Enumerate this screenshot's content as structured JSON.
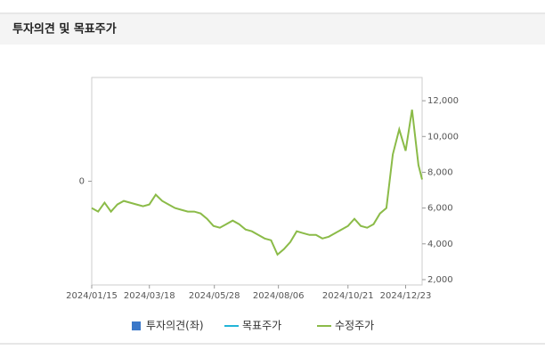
{
  "header": {
    "title": "투자의견 및 목표주가"
  },
  "chart_data": {
    "type": "line",
    "x": [
      "2024/01/15",
      "2024/01/22",
      "2024/01/29",
      "2024/02/05",
      "2024/02/12",
      "2024/02/19",
      "2024/02/26",
      "2024/03/04",
      "2024/03/11",
      "2024/03/18",
      "2024/03/25",
      "2024/04/01",
      "2024/04/08",
      "2024/04/15",
      "2024/04/22",
      "2024/04/29",
      "2024/05/06",
      "2024/05/13",
      "2024/05/20",
      "2024/05/27",
      "2024/06/03",
      "2024/06/10",
      "2024/06/17",
      "2024/06/24",
      "2024/07/01",
      "2024/07/08",
      "2024/07/15",
      "2024/07/22",
      "2024/07/29",
      "2024/08/05",
      "2024/08/12",
      "2024/08/19",
      "2024/08/26",
      "2024/09/02",
      "2024/09/09",
      "2024/09/16",
      "2024/09/23",
      "2024/09/30",
      "2024/10/07",
      "2024/10/14",
      "2024/10/21",
      "2024/10/28",
      "2024/11/04",
      "2024/11/11",
      "2024/11/18",
      "2024/11/25",
      "2024/12/02",
      "2024/12/09",
      "2024/12/16",
      "2024/12/23",
      "2024/12/30",
      "2025/01/06",
      "2025/01/10"
    ],
    "series": [
      {
        "name": "투자의견(좌)",
        "color": "#3a78c9",
        "values": [
          null,
          null,
          null,
          null,
          null,
          null,
          null,
          null,
          null,
          null,
          null,
          null,
          null,
          null,
          null,
          null,
          null,
          null,
          null,
          null,
          null,
          null,
          null,
          null,
          null,
          null,
          null,
          null,
          null,
          null,
          null,
          null,
          null,
          null,
          null,
          null,
          null,
          null,
          null,
          null,
          null,
          null,
          null,
          null,
          null,
          null,
          null,
          null,
          null,
          null,
          null,
          null,
          null
        ]
      },
      {
        "name": "목표주가",
        "color": "#22b5d8",
        "axis": "y2",
        "values": [
          null,
          null,
          null,
          null,
          null,
          null,
          null,
          null,
          null,
          null,
          null,
          null,
          null,
          null,
          null,
          null,
          null,
          null,
          null,
          null,
          null,
          null,
          null,
          null,
          null,
          null,
          null,
          null,
          null,
          null,
          null,
          null,
          null,
          null,
          null,
          null,
          null,
          null,
          null,
          null,
          null,
          null,
          null,
          null,
          null,
          null,
          null,
          null,
          null,
          null,
          null,
          null,
          null
        ]
      },
      {
        "name": "수정주가",
        "color": "#8bbb48",
        "axis": "y2",
        "values": [
          6000,
          5800,
          6300,
          5800,
          6200,
          6400,
          6300,
          6200,
          6100,
          6200,
          6750,
          6400,
          6200,
          6000,
          5900,
          5800,
          5800,
          5700,
          5400,
          5000,
          4900,
          5100,
          5300,
          5100,
          4800,
          4700,
          4500,
          4300,
          4200,
          3400,
          3700,
          4100,
          4700,
          4600,
          4500,
          4500,
          4300,
          4400,
          4600,
          4800,
          5000,
          5400,
          5000,
          4900,
          5100,
          5700,
          6000,
          9000,
          10400,
          9200,
          11500,
          8400,
          7600
        ]
      }
    ],
    "xlim": [
      "2024/01/15",
      "2025/01/10"
    ],
    "xticks": [
      "2024/01/15",
      "2024/03/18",
      "2024/05/28",
      "2024/08/06",
      "2024/10/21",
      "2024/12/23"
    ],
    "ylim": [
      -1,
      1
    ],
    "yticks": [
      0
    ],
    "y2lim": [
      1700,
      13300
    ],
    "y2ticks": [
      {
        "value": 2000,
        "label": "2,000"
      },
      {
        "value": 4000,
        "label": "4,000"
      },
      {
        "value": 6000,
        "label": "6,000"
      },
      {
        "value": 8000,
        "label": "8,000"
      },
      {
        "value": 10000,
        "label": "10,000"
      },
      {
        "value": 12000,
        "label": "12,000"
      }
    ]
  }
}
